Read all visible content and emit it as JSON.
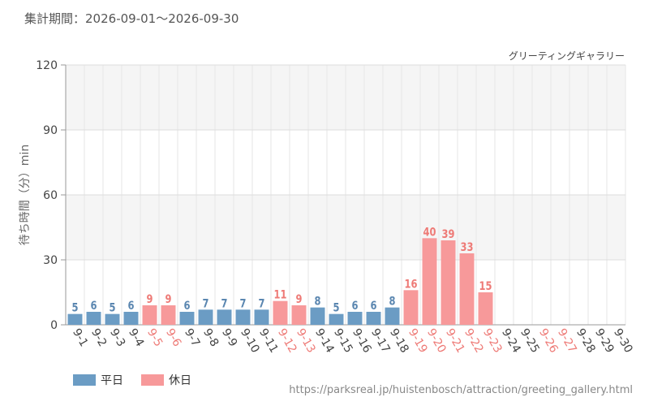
{
  "header": {
    "period_label": "集計期間：",
    "period_start": "2026-09-01",
    "period_sep": "～",
    "period_end": "2026-09-30"
  },
  "footer": {
    "url": "https://parksreal.jp/huistenbosch/attraction/greeting_gallery.html"
  },
  "chart_data": {
    "type": "bar",
    "title": "グリーティングギャラリー",
    "ylabel": "待ち時間（分）min",
    "xlabel": "",
    "ylim": [
      0,
      120
    ],
    "yticks": [
      0,
      30,
      60,
      90,
      120
    ],
    "grid": true,
    "legend_position": "bottom-left",
    "categories": [
      "9-1",
      "9-2",
      "9-3",
      "9-4",
      "9-5",
      "9-6",
      "9-7",
      "9-8",
      "9-9",
      "9-10",
      "9-11",
      "9-12",
      "9-13",
      "9-14",
      "9-15",
      "9-16",
      "9-17",
      "9-18",
      "9-19",
      "9-20",
      "9-21",
      "9-22",
      "9-23",
      "9-24",
      "9-25",
      "9-26",
      "9-27",
      "9-28",
      "9-29",
      "9-30"
    ],
    "values": [
      5,
      6,
      5,
      6,
      9,
      9,
      6,
      7,
      7,
      7,
      7,
      11,
      9,
      8,
      5,
      6,
      6,
      8,
      16,
      40,
      39,
      33,
      15,
      null,
      null,
      null,
      null,
      null,
      null,
      null
    ],
    "holiday": [
      false,
      false,
      false,
      false,
      true,
      true,
      false,
      false,
      false,
      false,
      false,
      true,
      true,
      false,
      false,
      false,
      false,
      false,
      true,
      true,
      true,
      true,
      true,
      false,
      false,
      true,
      true,
      false,
      false,
      false
    ],
    "series": [
      {
        "name": "平日",
        "color": "#6b9cc4",
        "label_color": "#5a86b0"
      },
      {
        "name": "休日",
        "color": "#f7999a",
        "label_color": "#ee7a76"
      }
    ]
  }
}
